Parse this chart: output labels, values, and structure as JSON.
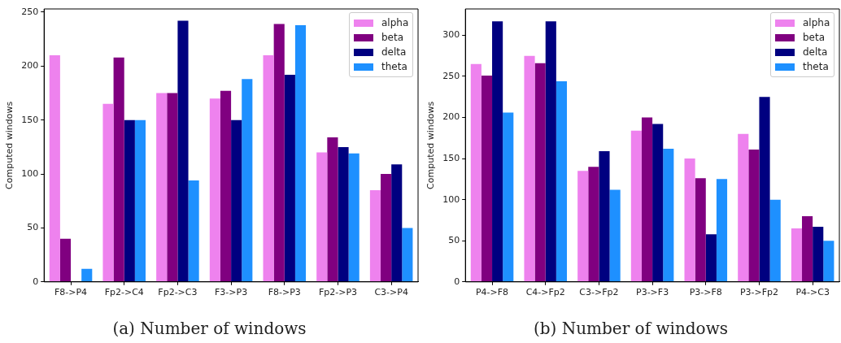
{
  "chart_data": [
    {
      "type": "bar",
      "title": "(a) Number of windows",
      "ylabel": "Computed windows",
      "categories": [
        "F8->P4",
        "Fp2->C4",
        "Fp2->C3",
        "F3->P3",
        "F8->P3",
        "Fp2->P3",
        "C3->P4"
      ],
      "ylim": [
        0,
        253
      ],
      "yticks": [
        0,
        50,
        100,
        150,
        200,
        250
      ],
      "grid": false,
      "legend": "top right",
      "series": [
        {
          "name": "alpha",
          "color": "#ee82ee",
          "values": [
            210,
            165,
            175,
            170,
            210,
            120,
            85
          ]
        },
        {
          "name": "beta",
          "color": "#800080",
          "values": [
            40,
            208,
            175,
            177,
            239,
            134,
            100
          ]
        },
        {
          "name": "delta",
          "color": "#000080",
          "values": [
            0,
            150,
            242,
            150,
            192,
            125,
            109
          ]
        },
        {
          "name": "theta",
          "color": "#1e90ff",
          "values": [
            12,
            150,
            94,
            188,
            238,
            119,
            50
          ]
        }
      ]
    },
    {
      "type": "bar",
      "title": "(b) Number of windows",
      "ylabel": "Computed windows",
      "categories": [
        "P4->F8",
        "C4->Fp2",
        "C3->Fp2",
        "P3->F3",
        "P3->F8",
        "P3->Fp2",
        "P4->C3"
      ],
      "ylim": [
        0,
        332
      ],
      "yticks": [
        0,
        50,
        100,
        150,
        200,
        250,
        300
      ],
      "grid": false,
      "legend": "top right",
      "series": [
        {
          "name": "alpha",
          "color": "#ee82ee",
          "values": [
            265,
            275,
            135,
            184,
            150,
            180,
            65
          ]
        },
        {
          "name": "beta",
          "color": "#800080",
          "values": [
            251,
            266,
            140,
            200,
            126,
            161,
            80
          ]
        },
        {
          "name": "delta",
          "color": "#000080",
          "values": [
            317,
            317,
            159,
            192,
            58,
            225,
            67
          ]
        },
        {
          "name": "theta",
          "color": "#1e90ff",
          "values": [
            206,
            244,
            112,
            162,
            125,
            100,
            50
          ]
        }
      ]
    }
  ]
}
